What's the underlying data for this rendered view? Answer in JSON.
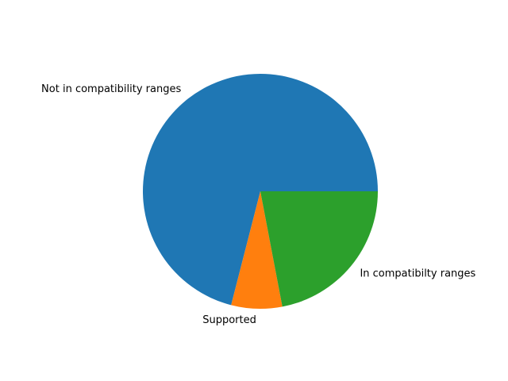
{
  "chart_data": {
    "type": "pie",
    "title": "",
    "slices": [
      {
        "label": "Not in compatibility ranges",
        "value": 71,
        "color": "#1f77b4"
      },
      {
        "label": "Supported",
        "value": 7,
        "color": "#ff7f0e"
      },
      {
        "label": "In compatibilty ranges",
        "value": 22,
        "color": "#2ca02c"
      }
    ],
    "start_angle_deg": 0,
    "direction": "counterclockwise",
    "legend": "none"
  }
}
